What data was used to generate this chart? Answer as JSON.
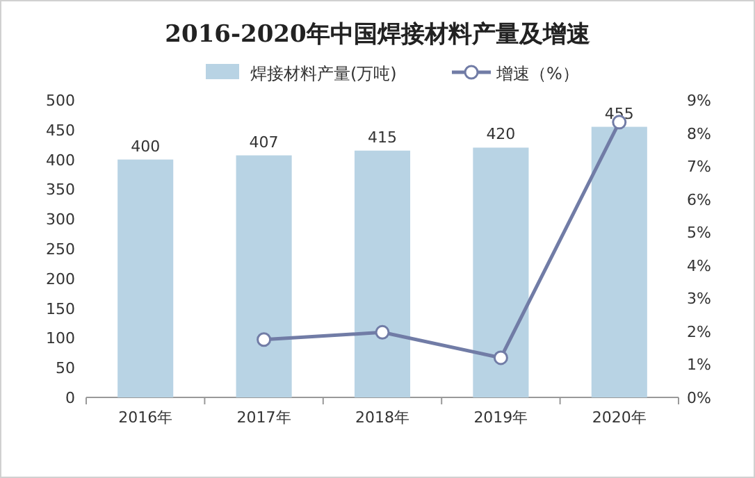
{
  "chart_data": {
    "type": "bar",
    "title": "2016-2020年中国焊接材料产量及增速",
    "categories": [
      "2016年",
      "2017年",
      "2018年",
      "2019年",
      "2020年"
    ],
    "series": [
      {
        "name": "焊接材料产量(万吨)",
        "color": "#b8d3e4",
        "values": [
          400,
          407,
          415,
          420,
          455
        ],
        "value_labels": [
          "400",
          "407",
          "415",
          "420",
          "455"
        ]
      },
      {
        "name": "增速（%）",
        "type": "line",
        "axis": "y2",
        "color": "#717ca6",
        "marker": "circle",
        "values": [
          null,
          1.75,
          1.97,
          1.2,
          8.33
        ]
      }
    ],
    "ylim": [
      0,
      500
    ],
    "yticks": [
      0,
      50,
      100,
      150,
      200,
      250,
      300,
      350,
      400,
      450,
      500
    ],
    "y2lim": [
      0,
      9
    ],
    "y2ticks": [
      {
        "value": 0,
        "label": "0%"
      },
      {
        "value": 1,
        "label": "1%"
      },
      {
        "value": 2,
        "label": "2%"
      },
      {
        "value": 3,
        "label": "3%"
      },
      {
        "value": 4,
        "label": "4%"
      },
      {
        "value": 5,
        "label": "5%"
      },
      {
        "value": 6,
        "label": "6%"
      },
      {
        "value": 7,
        "label": "7%"
      },
      {
        "value": 8,
        "label": "8%"
      },
      {
        "value": 9,
        "label": "9%"
      }
    ],
    "legend": "top",
    "grid": false
  }
}
